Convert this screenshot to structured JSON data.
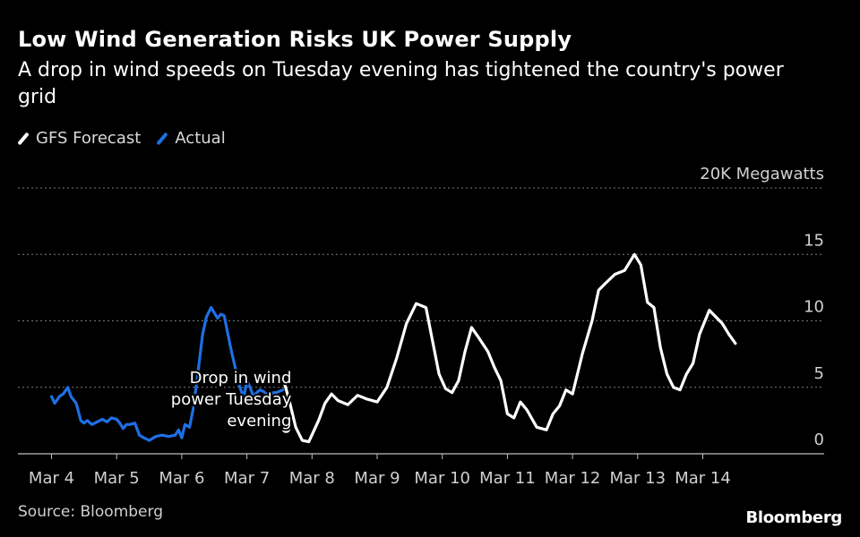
{
  "chart_data": {
    "type": "line",
    "title": "Low Wind Generation Risks UK Power Supply",
    "subtitle": "A drop in wind speeds on Tuesday evening has tightened the country's power grid",
    "ylabel": "",
    "y_unit_label": "20K Megawatts",
    "ylim": [
      0,
      20
    ],
    "y_ticks": [
      {
        "value": 0,
        "label": "0"
      },
      {
        "value": 5,
        "label": "5"
      },
      {
        "value": 10,
        "label": "10"
      },
      {
        "value": 15,
        "label": "15"
      },
      {
        "value": 20,
        "label": "20K Megawatts"
      }
    ],
    "x_range": [
      4,
      16
    ],
    "x_ticks": [
      {
        "value": 4,
        "label": "Mar 4"
      },
      {
        "value": 5,
        "label": "Mar 5"
      },
      {
        "value": 6,
        "label": "Mar 6"
      },
      {
        "value": 7,
        "label": "Mar 7"
      },
      {
        "value": 8,
        "label": "Mar 8"
      },
      {
        "value": 9,
        "label": "Mar 9"
      },
      {
        "value": 10,
        "label": "Mar 10"
      },
      {
        "value": 11,
        "label": "Mar 11"
      },
      {
        "value": 12,
        "label": "Mar 12"
      },
      {
        "value": 13,
        "label": "Mar 13"
      },
      {
        "value": 14,
        "label": "Mar 14"
      }
    ],
    "grid": true,
    "legend_position": "top-left",
    "series": [
      {
        "name": "GFS Forecast",
        "color": "#ffffff",
        "x": [
          7.55,
          7.65,
          7.75,
          7.85,
          7.95,
          8.1,
          8.2,
          8.3,
          8.4,
          8.55,
          8.7,
          8.85,
          9.0,
          9.15,
          9.3,
          9.45,
          9.6,
          9.75,
          9.85,
          9.95,
          10.05,
          10.15,
          10.25,
          10.35,
          10.45,
          10.55,
          10.7,
          10.8,
          10.9,
          11.0,
          11.1,
          11.2,
          11.3,
          11.45,
          11.6,
          11.7,
          11.8,
          11.9,
          12.0,
          12.15,
          12.3,
          12.4,
          12.5,
          12.65,
          12.8,
          12.95,
          13.05,
          13.15,
          13.25,
          13.35,
          13.45,
          13.55,
          13.65,
          13.75,
          13.85,
          13.95,
          14.1,
          14.2,
          14.3,
          14.4,
          14.5,
          14.6,
          14.7,
          14.8,
          14.95
        ],
        "values": [
          5.8,
          4.0,
          2.0,
          1.0,
          0.9,
          2.5,
          3.8,
          4.5,
          4.0,
          3.7,
          4.4,
          4.1,
          3.9,
          5.0,
          7.2,
          9.8,
          11.3,
          11.0,
          8.5,
          6.0,
          4.9,
          4.6,
          5.5,
          7.7,
          9.5,
          8.8,
          7.7,
          6.5,
          5.5,
          3.0,
          2.7,
          3.9,
          3.3,
          2.0,
          1.8,
          3.0,
          3.6,
          4.8,
          4.5,
          7.5,
          10.0,
          12.3,
          12.8,
          13.5,
          13.8,
          15.0,
          14.2,
          11.4,
          11.0,
          8.0,
          6.0,
          5.0,
          4.8,
          6.0,
          6.8,
          9.0,
          10.8,
          10.3,
          9.8,
          9.0,
          8.3,
          null,
          null,
          null,
          null
        ]
      },
      {
        "name": "Actual",
        "color": "#1f6fe5",
        "x": [
          4.0,
          4.05,
          4.12,
          4.18,
          4.25,
          4.3,
          4.38,
          4.45,
          4.5,
          4.55,
          4.62,
          4.7,
          4.78,
          4.85,
          4.92,
          5.0,
          5.05,
          5.1,
          5.15,
          5.2,
          5.28,
          5.35,
          5.42,
          5.5,
          5.6,
          5.7,
          5.8,
          5.9,
          5.95,
          6.0,
          6.05,
          6.12,
          6.18,
          6.25,
          6.32,
          6.38,
          6.45,
          6.5,
          6.55,
          6.6,
          6.65,
          6.7,
          6.75,
          6.82,
          6.88,
          6.95,
          7.0,
          7.05,
          7.1,
          7.15,
          7.2,
          7.25,
          7.3,
          7.35,
          7.4,
          7.45,
          7.55
        ],
        "values": [
          4.3,
          3.8,
          4.3,
          4.5,
          5.0,
          4.3,
          3.8,
          2.5,
          2.3,
          2.5,
          2.2,
          2.4,
          2.6,
          2.4,
          2.7,
          2.6,
          2.3,
          1.9,
          2.2,
          2.2,
          2.3,
          1.4,
          1.2,
          1.0,
          1.3,
          1.4,
          1.3,
          1.4,
          1.8,
          1.2,
          2.2,
          2.0,
          3.5,
          6.2,
          9.0,
          10.3,
          11.0,
          10.6,
          10.2,
          10.5,
          10.4,
          9.2,
          8.0,
          6.5,
          5.2,
          4.2,
          5.5,
          5.0,
          4.3,
          4.6,
          4.8,
          4.7,
          4.5,
          4.3,
          4.6,
          4.6,
          4.8
        ]
      }
    ],
    "annotation": {
      "text_lines": [
        "Drop in wind",
        "power Tuesday",
        "evening"
      ],
      "x": 7.85,
      "y": 1.9
    },
    "source": "Source: Bloomberg",
    "brand": "Bloomberg"
  }
}
